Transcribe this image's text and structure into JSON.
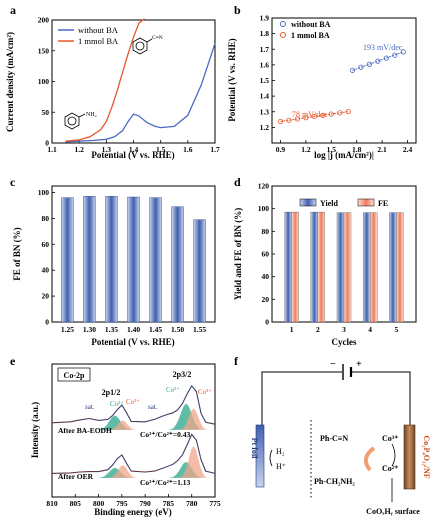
{
  "colors": {
    "blue": "#4a6bc4",
    "red": "#e8542a",
    "navy": "#1f3a7a",
    "bar_blue": "#3f5fb0",
    "bar_red": "#f07a5a",
    "teal": "#2aa58a",
    "peach": "#f0a58a"
  },
  "panels": {
    "a": {
      "letter": "a",
      "struct_label": "NH₂",
      "product_label": "C≡N"
    },
    "b": {
      "letter": "b",
      "annot_high": "193 mV/dec",
      "annot_low": "78 mV/dec"
    },
    "c": {
      "letter": "c"
    },
    "d": {
      "letter": "d"
    },
    "e": {
      "letter": "e",
      "box": "Co-2p",
      "p12": "2p1/2",
      "p32": "2p3/2",
      "sat1": "sat.",
      "sat2": "sat.",
      "co2a": "Co²⁺",
      "co3a": "Co³⁺",
      "co2b": "Co²⁺",
      "co3b": "Co³⁺",
      "after_ba": "After BA-EODH",
      "ratio_ba": "Co³⁺/Co²⁺=0.43",
      "after_oer": "After OER",
      "ratio_oer": "Co³⁺/Co²⁺=1.13"
    },
    "f": {
      "letter": "f",
      "minus": "−",
      "plus": "+",
      "pt": "Pt foil",
      "h2": "H₂",
      "hplus": "H⁺",
      "nitrile": "Ph-C≡N",
      "amine": "Ph-CH₂NH₂",
      "co3": "Co³⁺",
      "co2": "Co²⁺",
      "electrode": "Co₂P₄O₁₂/NF",
      "surface": "CoOₓHᵧ surface"
    }
  },
  "chart_data": [
    {
      "panel": "a",
      "type": "line",
      "xlabel": "Potential (V vs. RHE)",
      "ylabel": "Current density (mA/cm²)",
      "xlim": [
        1.1,
        1.7
      ],
      "ylim": [
        0,
        200
      ],
      "xticks": [
        "1.1",
        "1.2",
        "1.3",
        "1.4",
        "1.5",
        "1.6",
        "1.7"
      ],
      "yticks": [
        "0",
        "50",
        "100",
        "150",
        "200"
      ],
      "legend_position": "top-left",
      "series": [
        {
          "name": "without BA",
          "color": "#4a6bc4",
          "x": [
            1.15,
            1.2,
            1.25,
            1.3,
            1.33,
            1.36,
            1.38,
            1.4,
            1.42,
            1.45,
            1.48,
            1.5,
            1.55,
            1.6,
            1.65,
            1.7
          ],
          "y": [
            2,
            3,
            4,
            6,
            10,
            20,
            35,
            47,
            44,
            33,
            27,
            25,
            27,
            45,
            95,
            162
          ]
        },
        {
          "name": "1 mmol BA",
          "color": "#e8542a",
          "x": [
            1.15,
            1.2,
            1.24,
            1.28,
            1.3,
            1.32,
            1.34,
            1.36,
            1.38,
            1.4,
            1.42,
            1.44
          ],
          "y": [
            3,
            5,
            10,
            22,
            35,
            58,
            85,
            115,
            145,
            172,
            195,
            205
          ]
        }
      ]
    },
    {
      "panel": "b",
      "type": "scatter",
      "xlabel": "log |j (mA/cm²)|",
      "ylabel": "Potential (V vs. RHE)",
      "xlim": [
        0.8,
        2.5
      ],
      "ylim": [
        1.1,
        1.9
      ],
      "xticks": [
        "0.9",
        "1.2",
        "1.5",
        "1.8",
        "2.1",
        "2.4"
      ],
      "yticks": [
        "1.2",
        "1.3",
        "1.4",
        "1.5",
        "1.6",
        "1.7",
        "1.8",
        "1.9"
      ],
      "legend_position": "top-left",
      "series": [
        {
          "name": "without BA",
          "color": "#4a6bc4",
          "slope_label": "193 mV/dec",
          "x": [
            1.75,
            1.85,
            1.95,
            2.05,
            2.15,
            2.25,
            2.35
          ],
          "y": [
            1.565,
            1.585,
            1.604,
            1.624,
            1.643,
            1.662,
            1.683
          ]
        },
        {
          "name": "1 mmol BA",
          "color": "#e8542a",
          "slope_label": "78 mV/dec",
          "x": [
            0.9,
            1.0,
            1.1,
            1.2,
            1.3,
            1.4,
            1.5,
            1.6,
            1.7
          ],
          "y": [
            1.238,
            1.246,
            1.254,
            1.262,
            1.27,
            1.277,
            1.285,
            1.293,
            1.301
          ]
        }
      ]
    },
    {
      "panel": "c",
      "type": "bar",
      "xlabel": "Potential (V vs. RHE)",
      "ylabel": "FE of BN (%)",
      "ylim": [
        0,
        100
      ],
      "yticks": [
        "0",
        "20",
        "40",
        "60",
        "80",
        "100"
      ],
      "categories": [
        "1.25",
        "1.30",
        "1.35",
        "1.40",
        "1.45",
        "1.50",
        "1.55"
      ],
      "values": [
        96,
        97,
        97,
        96.5,
        96,
        89,
        79
      ]
    },
    {
      "panel": "d",
      "type": "bar",
      "xlabel": "Cycles",
      "ylabel": "Yield and FE of BN (%)",
      "ylim": [
        0,
        120
      ],
      "yticks": [
        "0",
        "20",
        "40",
        "60",
        "80",
        "100",
        "120"
      ],
      "legend_position": "top-center",
      "categories": [
        "1",
        "2",
        "3",
        "4",
        "5"
      ],
      "series": [
        {
          "name": "Yield",
          "color": "#3f5fb0",
          "values": [
            97,
            97,
            96.5,
            96.5,
            96.5
          ]
        },
        {
          "name": "FE",
          "color": "#f07a5a",
          "values": [
            97,
            97,
            96.5,
            96.5,
            96.5
          ]
        }
      ]
    },
    {
      "panel": "e",
      "type": "line",
      "xlabel": "Binding energy (eV)",
      "ylabel": "Intensity (a.u.)",
      "xlim": [
        810,
        775
      ],
      "xticks": [
        "810",
        "805",
        "800",
        "795",
        "790",
        "785",
        "780",
        "775"
      ],
      "series": [
        {
          "name": "After BA-EODH",
          "x": [
            810,
            806,
            804,
            802,
            800,
            798,
            797,
            796,
            795,
            794,
            793,
            790,
            788,
            786,
            784,
            783,
            782,
            781,
            780,
            779,
            778,
            777,
            775
          ],
          "y": [
            0.15,
            0.17,
            0.21,
            0.24,
            0.2,
            0.22,
            0.3,
            0.42,
            0.52,
            0.36,
            0.18,
            0.17,
            0.22,
            0.3,
            0.36,
            0.42,
            0.55,
            0.75,
            0.92,
            0.8,
            0.35,
            0.16,
            0.12
          ]
        },
        {
          "name": "After OER",
          "x": [
            810,
            806,
            804,
            802,
            800,
            798,
            797,
            796,
            795,
            794,
            793,
            790,
            788,
            786,
            784,
            783,
            782,
            781,
            780,
            779,
            778,
            777,
            775
          ],
          "y": [
            0.1,
            0.11,
            0.13,
            0.14,
            0.14,
            0.18,
            0.28,
            0.42,
            0.5,
            0.32,
            0.15,
            0.13,
            0.15,
            0.22,
            0.3,
            0.38,
            0.5,
            0.72,
            0.95,
            0.82,
            0.4,
            0.15,
            0.1
          ]
        }
      ]
    }
  ]
}
